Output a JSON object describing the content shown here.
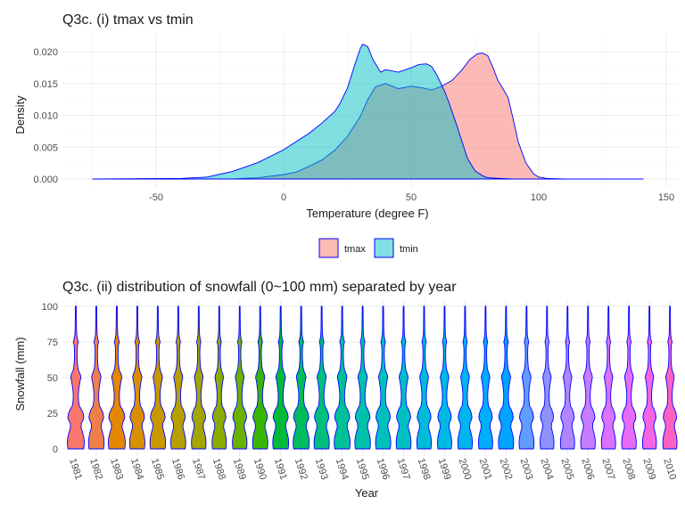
{
  "chart_data": [
    {
      "type": "area",
      "title": "Q3c. (i) tmax vs tmin",
      "xlabel": "Temperature (degree F)",
      "ylabel": "Density",
      "xlim": [
        -75,
        150
      ],
      "ylim": [
        0,
        0.0215
      ],
      "x_ticks": [
        -50,
        0,
        50,
        100,
        150
      ],
      "y_ticks": [
        0.0,
        0.005,
        0.01,
        0.015,
        0.02
      ],
      "x_tick_labels": [
        "-50",
        "0",
        "50",
        "100",
        "150"
      ],
      "y_tick_labels": [
        "0.000",
        "0.005",
        "0.010",
        "0.015",
        "0.020"
      ],
      "grid": true,
      "legend_position": "bottom",
      "outline_color": "#0000ff",
      "series": [
        {
          "name": "tmax",
          "color": "#F8766D",
          "x": [
            -75,
            -20,
            -10,
            0,
            5,
            10,
            15,
            20,
            25,
            30,
            33,
            36,
            40,
            45,
            50,
            55,
            58,
            62,
            66,
            70,
            73,
            76,
            78,
            80,
            82,
            84,
            86,
            88,
            90,
            92,
            95,
            98,
            100,
            103,
            110,
            120,
            141
          ],
          "y": [
            0,
            0,
            0.0002,
            0.0007,
            0.0011,
            0.002,
            0.003,
            0.0045,
            0.0067,
            0.0098,
            0.0125,
            0.0145,
            0.015,
            0.0142,
            0.0146,
            0.0143,
            0.014,
            0.0146,
            0.0155,
            0.0172,
            0.0188,
            0.0197,
            0.0198,
            0.0194,
            0.0176,
            0.0155,
            0.0142,
            0.0128,
            0.0094,
            0.0058,
            0.0025,
            0.0008,
            0.0003,
            0.0001,
            0,
            0,
            0
          ]
        },
        {
          "name": "tmin",
          "color": "#00BFC4",
          "x": [
            -75,
            -40,
            -30,
            -20,
            -10,
            0,
            5,
            10,
            15,
            20,
            22,
            25,
            28,
            30,
            31,
            33,
            35,
            38,
            40,
            45,
            50,
            53,
            56,
            58,
            60,
            63,
            65,
            68,
            70,
            72,
            75,
            78,
            80,
            85,
            90,
            100,
            141
          ],
          "y": [
            0,
            0.0001,
            0.0003,
            0.0012,
            0.0026,
            0.0046,
            0.0059,
            0.0072,
            0.0088,
            0.0106,
            0.0118,
            0.0143,
            0.0181,
            0.0205,
            0.0212,
            0.0208,
            0.0188,
            0.0168,
            0.0172,
            0.0168,
            0.0175,
            0.018,
            0.0181,
            0.0177,
            0.0164,
            0.0139,
            0.0118,
            0.0083,
            0.0058,
            0.0033,
            0.0013,
            0.0005,
            0.0002,
            0.0001,
            0,
            0,
            0
          ]
        }
      ]
    },
    {
      "type": "violin",
      "title": "Q3c. (ii) distribution of snowfall (0~100 mm) separated by year",
      "xlabel": "Year",
      "ylabel": "Snowfall (mm)",
      "ylim": [
        0,
        100
      ],
      "y_ticks": [
        0,
        25,
        50,
        75,
        100
      ],
      "y_tick_labels": [
        "0",
        "25",
        "50",
        "75",
        "100"
      ],
      "grid": true,
      "outline_color": "#0000ff",
      "categories": [
        "1981",
        "1982",
        "1983",
        "1984",
        "1985",
        "1986",
        "1987",
        "1988",
        "1989",
        "1990",
        "1991",
        "1992",
        "1993",
        "1994",
        "1995",
        "1996",
        "1997",
        "1998",
        "1999",
        "2000",
        "2001",
        "2002",
        "2003",
        "2004",
        "2005",
        "2006",
        "2007",
        "2008",
        "2009",
        "2010"
      ],
      "colors": [
        "#F8766D",
        "#EF7F49",
        "#E58700",
        "#D89000",
        "#C99800",
        "#B79F00",
        "#A3A500",
        "#8BAB00",
        "#6BB100",
        "#39B600",
        "#00BA38",
        "#00BD5C",
        "#00BF7D",
        "#00C097",
        "#00C1AA",
        "#00C0BB",
        "#00BFC4",
        "#00BCD8",
        "#00B9E3",
        "#00B4EF",
        "#00ADFA",
        "#00A5FF",
        "#619CFF",
        "#8F91FF",
        "#AE87FF",
        "#C77CFF",
        "#DB72FB",
        "#E76BF3",
        "#F564E3",
        "#FF61C3"
      ],
      "violin_profile": {
        "y": [
          0,
          2,
          5,
          8,
          12,
          15,
          18,
          20,
          22,
          25,
          28,
          30,
          33,
          36,
          40,
          43,
          47,
          50,
          52,
          55,
          58,
          62,
          66,
          70,
          73,
          75,
          77,
          80,
          85,
          90,
          95,
          100
        ],
        "relative_width": [
          0.92,
          0.98,
          1.0,
          0.95,
          0.78,
          0.62,
          0.66,
          0.84,
          0.95,
          0.86,
          0.64,
          0.42,
          0.34,
          0.3,
          0.32,
          0.38,
          0.48,
          0.6,
          0.54,
          0.32,
          0.22,
          0.17,
          0.15,
          0.16,
          0.2,
          0.3,
          0.2,
          0.11,
          0.08,
          0.07,
          0.06,
          0.05
        ]
      },
      "max_width_variation": [
        1.0,
        0.92,
        1.0,
        0.9,
        0.92,
        0.88,
        0.86,
        0.84,
        0.86,
        0.9,
        0.94,
        0.95,
        0.9,
        0.94,
        0.92,
        0.9,
        0.88,
        0.86,
        0.84,
        0.86,
        0.84,
        0.9,
        0.88,
        0.82,
        0.84,
        0.86,
        0.84,
        0.86,
        0.82,
        0.84
      ]
    }
  ],
  "legend": {
    "items": [
      {
        "label": "tmax",
        "color": "#F8766D"
      },
      {
        "label": "tmin",
        "color": "#00BFC4"
      }
    ]
  }
}
